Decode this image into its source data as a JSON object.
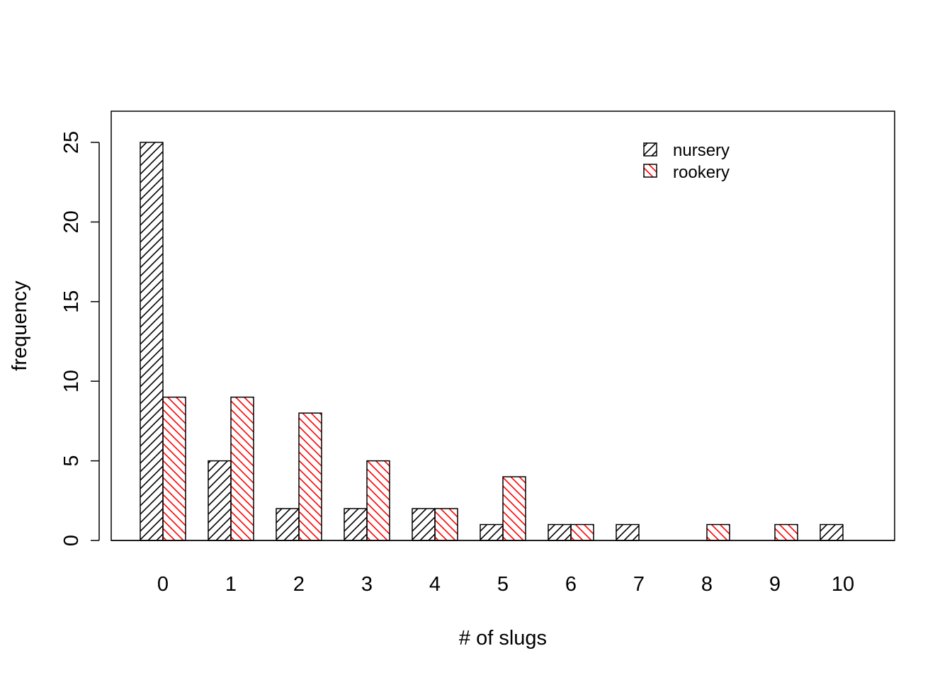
{
  "chart_data": {
    "type": "bar",
    "categories": [
      "0",
      "1",
      "2",
      "3",
      "4",
      "5",
      "6",
      "7",
      "8",
      "9",
      "10"
    ],
    "series": [
      {
        "name": "nursery",
        "values": [
          25,
          5,
          2,
          2,
          2,
          1,
          1,
          1,
          0,
          0,
          1
        ],
        "color": "#000000",
        "hatch": "forward-diagonal"
      },
      {
        "name": "rookery",
        "values": [
          9,
          9,
          8,
          5,
          2,
          4,
          1,
          0,
          1,
          1,
          0
        ],
        "color": "#ff0000",
        "hatch": "back-diagonal"
      }
    ],
    "xlabel": "# of slugs",
    "ylabel": "frequency",
    "ylim": [
      0,
      27
    ],
    "yticks": [
      "0",
      "5",
      "10",
      "15",
      "20",
      "25"
    ],
    "grid": false,
    "legend_position": "top-right",
    "bar_style": "grouped, hatched, black outline"
  }
}
